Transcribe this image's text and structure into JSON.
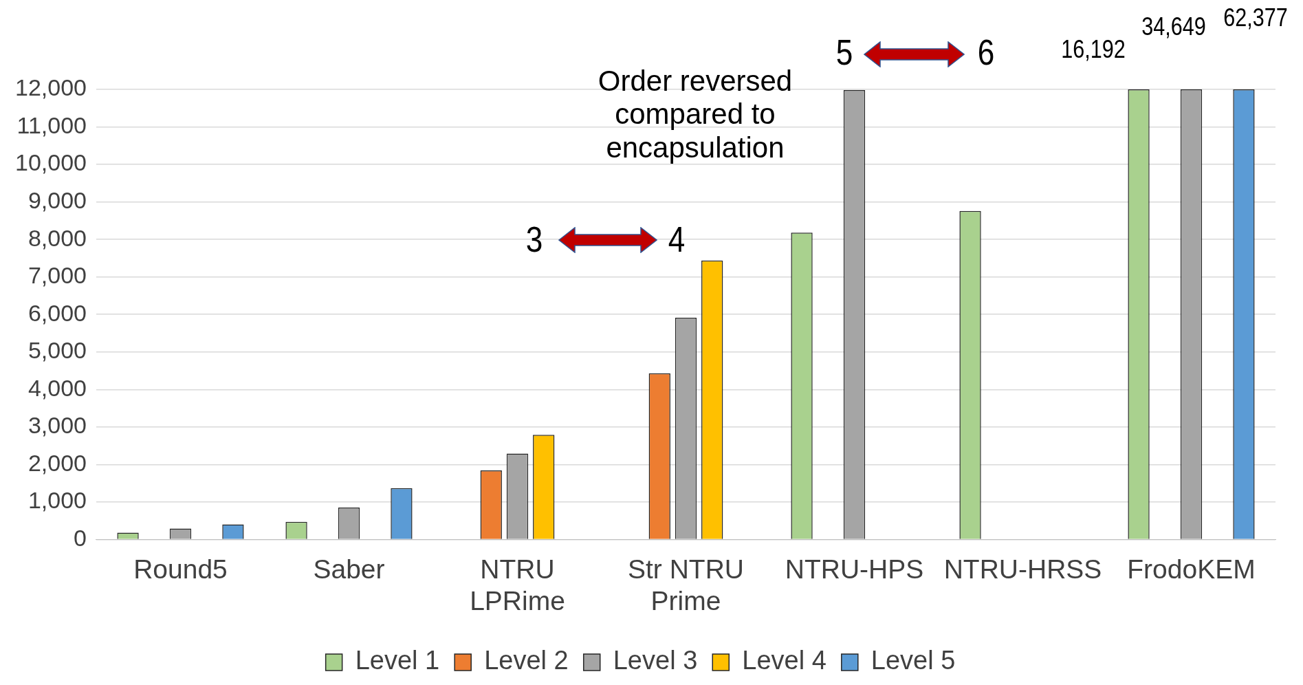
{
  "chart_data": {
    "type": "bar",
    "categories": [
      "Round5",
      "Saber",
      "NTRU LPRime",
      "Str NTRU Prime",
      "NTRU-HPS",
      "NTRU-HRSS",
      "FrodoKEM"
    ],
    "series": [
      {
        "name": "Level 1",
        "color": "#a9d18e",
        "values": [
          180,
          470,
          null,
          null,
          8180,
          8760,
          12000
        ]
      },
      {
        "name": "Level 2",
        "color": "#ed7d31",
        "values": [
          null,
          null,
          1840,
          4430,
          null,
          null,
          null
        ]
      },
      {
        "name": "Level 3",
        "color": "#a5a5a5",
        "values": [
          290,
          850,
          2290,
          5910,
          11980,
          null,
          12000
        ]
      },
      {
        "name": "Level 4",
        "color": "#ffc000",
        "values": [
          null,
          null,
          2790,
          7440,
          null,
          null,
          null
        ]
      },
      {
        "name": "Level 5",
        "color": "#5b9bd5",
        "values": [
          400,
          1370,
          null,
          null,
          null,
          null,
          12000
        ]
      }
    ],
    "ylim": [
      0,
      12000
    ],
    "yticks": [
      0,
      {
        "value": 1000,
        "label": "1,000"
      },
      {
        "value": 2000,
        "label": "2,000"
      },
      {
        "value": 3000,
        "label": "3,000"
      },
      {
        "value": 4000,
        "label": "4,000"
      },
      {
        "value": 5000,
        "label": "5,000"
      },
      {
        "value": 6000,
        "label": "6,000"
      },
      {
        "value": 7000,
        "label": "7,000"
      },
      {
        "value": 8000,
        "label": "8,000"
      },
      {
        "value": 9000,
        "label": "9,000"
      },
      {
        "value": 10000,
        "label": "10,000"
      },
      {
        "value": 11000,
        "label": "11,000"
      },
      {
        "value": 12000,
        "label": "12,000"
      }
    ],
    "grid": "y",
    "legend": "bottom",
    "annotations": [
      "Order reversed compared to encapsulation",
      "3",
      "4",
      "5",
      "6",
      {
        "text": "16,192",
        "x": "FrodoKEM",
        "y": 12000
      },
      {
        "text": "34,649",
        "x": "FrodoKEM",
        "y": 12000
      },
      {
        "text": "62,377",
        "x": "FrodoKEM",
        "y": 12000
      }
    ]
  }
}
